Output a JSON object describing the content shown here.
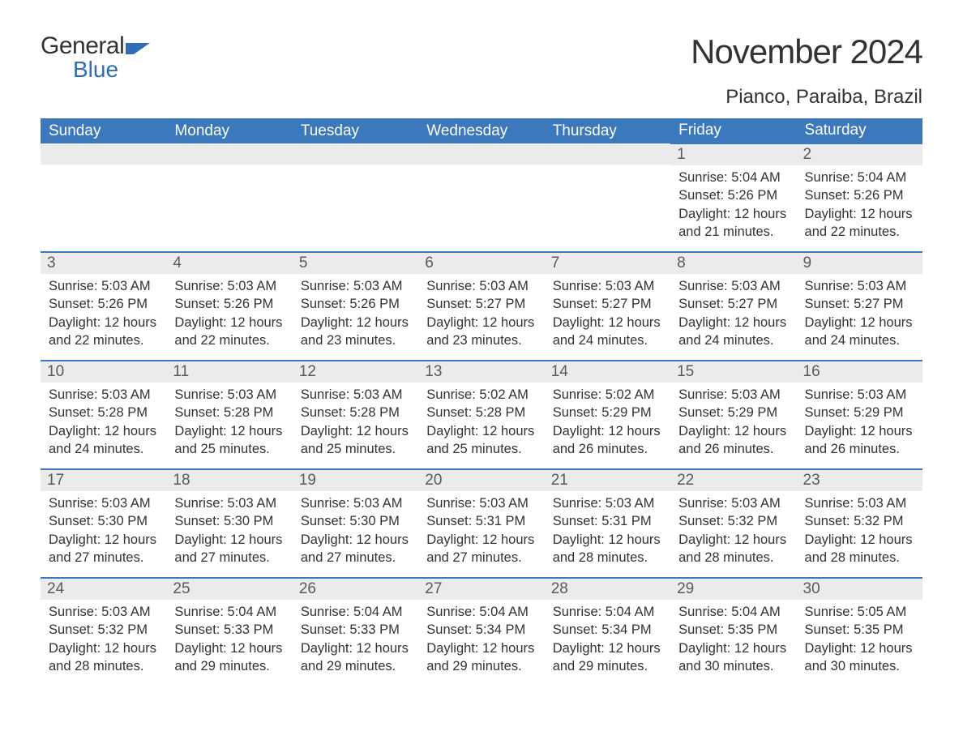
{
  "brand": {
    "text1": "General",
    "text2": "Blue",
    "accent_color": "#2f6eb5"
  },
  "header": {
    "month_title": "November 2024",
    "location": "Pianco, Paraiba, Brazil"
  },
  "style": {
    "header_bg": "#3b78bc",
    "header_text": "#ffffff",
    "daynum_bg": "#ebebeb",
    "daynum_text": "#5a5a5a",
    "body_text": "#333333",
    "week_border_top": "#3b78bc",
    "page_bg": "#ffffff"
  },
  "weekdays": [
    "Sunday",
    "Monday",
    "Tuesday",
    "Wednesday",
    "Thursday",
    "Friday",
    "Saturday"
  ],
  "labels": {
    "sunrise": "Sunrise:",
    "sunset": "Sunset:",
    "daylight": "Daylight:"
  },
  "weeks": [
    [
      null,
      null,
      null,
      null,
      null,
      {
        "day": "1",
        "sunrise": "5:04 AM",
        "sunset": "5:26 PM",
        "daylight": "12 hours and 21 minutes."
      },
      {
        "day": "2",
        "sunrise": "5:04 AM",
        "sunset": "5:26 PM",
        "daylight": "12 hours and 22 minutes."
      }
    ],
    [
      {
        "day": "3",
        "sunrise": "5:03 AM",
        "sunset": "5:26 PM",
        "daylight": "12 hours and 22 minutes."
      },
      {
        "day": "4",
        "sunrise": "5:03 AM",
        "sunset": "5:26 PM",
        "daylight": "12 hours and 22 minutes."
      },
      {
        "day": "5",
        "sunrise": "5:03 AM",
        "sunset": "5:26 PM",
        "daylight": "12 hours and 23 minutes."
      },
      {
        "day": "6",
        "sunrise": "5:03 AM",
        "sunset": "5:27 PM",
        "daylight": "12 hours and 23 minutes."
      },
      {
        "day": "7",
        "sunrise": "5:03 AM",
        "sunset": "5:27 PM",
        "daylight": "12 hours and 24 minutes."
      },
      {
        "day": "8",
        "sunrise": "5:03 AM",
        "sunset": "5:27 PM",
        "daylight": "12 hours and 24 minutes."
      },
      {
        "day": "9",
        "sunrise": "5:03 AM",
        "sunset": "5:27 PM",
        "daylight": "12 hours and 24 minutes."
      }
    ],
    [
      {
        "day": "10",
        "sunrise": "5:03 AM",
        "sunset": "5:28 PM",
        "daylight": "12 hours and 24 minutes."
      },
      {
        "day": "11",
        "sunrise": "5:03 AM",
        "sunset": "5:28 PM",
        "daylight": "12 hours and 25 minutes."
      },
      {
        "day": "12",
        "sunrise": "5:03 AM",
        "sunset": "5:28 PM",
        "daylight": "12 hours and 25 minutes."
      },
      {
        "day": "13",
        "sunrise": "5:02 AM",
        "sunset": "5:28 PM",
        "daylight": "12 hours and 25 minutes."
      },
      {
        "day": "14",
        "sunrise": "5:02 AM",
        "sunset": "5:29 PM",
        "daylight": "12 hours and 26 minutes."
      },
      {
        "day": "15",
        "sunrise": "5:03 AM",
        "sunset": "5:29 PM",
        "daylight": "12 hours and 26 minutes."
      },
      {
        "day": "16",
        "sunrise": "5:03 AM",
        "sunset": "5:29 PM",
        "daylight": "12 hours and 26 minutes."
      }
    ],
    [
      {
        "day": "17",
        "sunrise": "5:03 AM",
        "sunset": "5:30 PM",
        "daylight": "12 hours and 27 minutes."
      },
      {
        "day": "18",
        "sunrise": "5:03 AM",
        "sunset": "5:30 PM",
        "daylight": "12 hours and 27 minutes."
      },
      {
        "day": "19",
        "sunrise": "5:03 AM",
        "sunset": "5:30 PM",
        "daylight": "12 hours and 27 minutes."
      },
      {
        "day": "20",
        "sunrise": "5:03 AM",
        "sunset": "5:31 PM",
        "daylight": "12 hours and 27 minutes."
      },
      {
        "day": "21",
        "sunrise": "5:03 AM",
        "sunset": "5:31 PM",
        "daylight": "12 hours and 28 minutes."
      },
      {
        "day": "22",
        "sunrise": "5:03 AM",
        "sunset": "5:32 PM",
        "daylight": "12 hours and 28 minutes."
      },
      {
        "day": "23",
        "sunrise": "5:03 AM",
        "sunset": "5:32 PM",
        "daylight": "12 hours and 28 minutes."
      }
    ],
    [
      {
        "day": "24",
        "sunrise": "5:03 AM",
        "sunset": "5:32 PM",
        "daylight": "12 hours and 28 minutes."
      },
      {
        "day": "25",
        "sunrise": "5:04 AM",
        "sunset": "5:33 PM",
        "daylight": "12 hours and 29 minutes."
      },
      {
        "day": "26",
        "sunrise": "5:04 AM",
        "sunset": "5:33 PM",
        "daylight": "12 hours and 29 minutes."
      },
      {
        "day": "27",
        "sunrise": "5:04 AM",
        "sunset": "5:34 PM",
        "daylight": "12 hours and 29 minutes."
      },
      {
        "day": "28",
        "sunrise": "5:04 AM",
        "sunset": "5:34 PM",
        "daylight": "12 hours and 29 minutes."
      },
      {
        "day": "29",
        "sunrise": "5:04 AM",
        "sunset": "5:35 PM",
        "daylight": "12 hours and 30 minutes."
      },
      {
        "day": "30",
        "sunrise": "5:05 AM",
        "sunset": "5:35 PM",
        "daylight": "12 hours and 30 minutes."
      }
    ]
  ]
}
